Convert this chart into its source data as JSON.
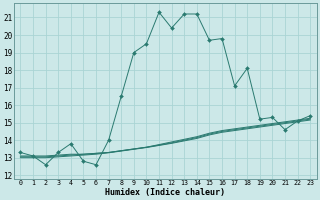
{
  "xlabel": "Humidex (Indice chaleur)",
  "xlim": [
    -0.5,
    23.5
  ],
  "ylim": [
    11.8,
    21.8
  ],
  "yticks": [
    12,
    13,
    14,
    15,
    16,
    17,
    18,
    19,
    20,
    21
  ],
  "xticks": [
    0,
    1,
    2,
    3,
    4,
    5,
    6,
    7,
    8,
    9,
    10,
    11,
    12,
    13,
    14,
    15,
    16,
    17,
    18,
    19,
    20,
    21,
    22,
    23
  ],
  "bg_color": "#cce8e8",
  "grid_color": "#aad4d4",
  "line_color": "#2a7a70",
  "series1_x": [
    0,
    1,
    2,
    3,
    4,
    5,
    6,
    7,
    8,
    9,
    10,
    11,
    12,
    13,
    14,
    15,
    16,
    17,
    18,
    19,
    20,
    21,
    22,
    23
  ],
  "series1_y": [
    13.3,
    13.1,
    12.6,
    13.3,
    13.8,
    12.8,
    12.6,
    14.0,
    16.5,
    19.0,
    19.5,
    21.3,
    20.4,
    21.2,
    21.2,
    19.7,
    19.8,
    17.1,
    18.1,
    15.2,
    15.3,
    14.6,
    15.1,
    15.4
  ],
  "series2_y": [
    13.1,
    13.1,
    13.1,
    13.15,
    13.2,
    13.2,
    13.25,
    13.3,
    13.4,
    13.5,
    13.6,
    13.75,
    13.9,
    14.05,
    14.2,
    14.4,
    14.55,
    14.65,
    14.75,
    14.85,
    14.95,
    15.05,
    15.15,
    15.25
  ],
  "series3_y": [
    13.05,
    13.05,
    13.05,
    13.1,
    13.15,
    13.2,
    13.25,
    13.3,
    13.4,
    13.5,
    13.6,
    13.72,
    13.85,
    14.0,
    14.15,
    14.35,
    14.5,
    14.6,
    14.7,
    14.8,
    14.9,
    15.0,
    15.1,
    15.2
  ],
  "series4_y": [
    13.0,
    13.0,
    13.0,
    13.05,
    13.1,
    13.15,
    13.2,
    13.28,
    13.38,
    13.48,
    13.58,
    13.7,
    13.82,
    13.96,
    14.1,
    14.3,
    14.45,
    14.55,
    14.65,
    14.75,
    14.85,
    14.95,
    15.05,
    15.15
  ]
}
